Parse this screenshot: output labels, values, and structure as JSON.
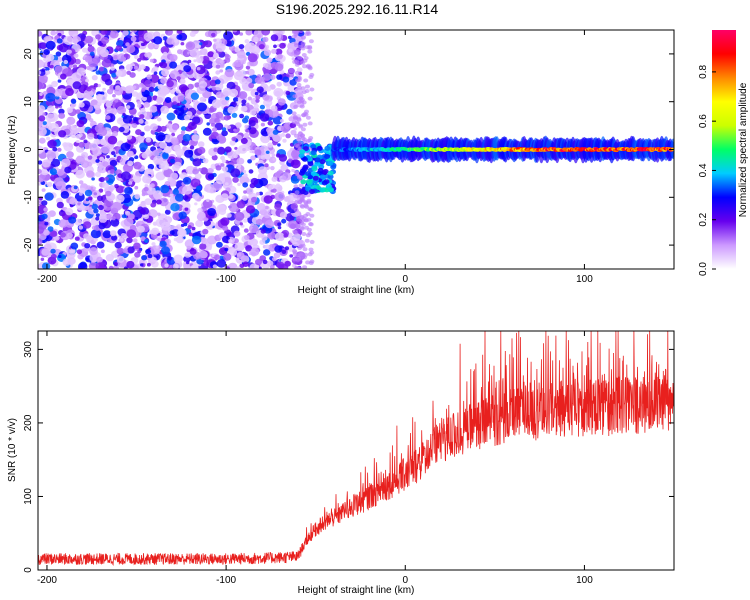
{
  "chart_data": [
    {
      "type": "heatmap",
      "title": "S196.2025.292.16.11.R14",
      "xlabel": "Height of straight line (km)",
      "ylabel": "Frequency (Hz)",
      "xlim": [
        -205,
        150
      ],
      "ylim": [
        -25,
        25
      ],
      "xticks": [
        -200,
        -100,
        0,
        100
      ],
      "yticks": [
        -20,
        -10,
        0,
        10,
        20
      ],
      "colorbar": {
        "label": "Normalized spectral amplitude",
        "range": [
          0.0,
          0.97
        ],
        "ticks": [
          0.0,
          0.2,
          0.4,
          0.6,
          0.8
        ],
        "colormap": [
          "#ffffff",
          "#cc99ff",
          "#6600ee",
          "#0000ff",
          "#00ccff",
          "#00ff66",
          "#ccff00",
          "#ffff00",
          "#ff8800",
          "#ff0000",
          "#ff0066"
        ]
      },
      "regions": [
        {
          "name": "noise",
          "x_range": [
            -205,
            -58
          ],
          "freq_range": [
            -25,
            25
          ],
          "amplitude_range": [
            0.0,
            0.3
          ]
        },
        {
          "name": "transition",
          "x_range": [
            -58,
            -40
          ],
          "freq_range": [
            -9,
            1
          ],
          "amplitude_range": [
            0.1,
            0.3
          ]
        },
        {
          "name": "tone",
          "x_range": [
            -40,
            150
          ],
          "freq_center": 0,
          "freq_halfwidth": 1.5,
          "peak_amplitude": 0.95
        }
      ]
    },
    {
      "type": "line",
      "title": "",
      "xlabel": "Height of straight line (km)",
      "ylabel": "SNR (10 * v/v)",
      "xlim": [
        -205,
        150
      ],
      "ylim": [
        0,
        325
      ],
      "xticks": [
        -200,
        -100,
        0,
        100
      ],
      "yticks": [
        0,
        100,
        200,
        300
      ],
      "series": [
        {
          "name": "SNR",
          "color": "#e8201e",
          "x": [
            -205,
            -180,
            -150,
            -120,
            -100,
            -80,
            -60,
            -55,
            -50,
            -40,
            -30,
            -20,
            -10,
            0,
            10,
            20,
            30,
            40,
            50,
            60,
            70,
            80,
            90,
            100,
            110,
            120,
            130,
            140,
            150
          ],
          "y": [
            15,
            15,
            15,
            15,
            15,
            16,
            18,
            40,
            55,
            70,
            85,
            100,
            115,
            130,
            150,
            175,
            185,
            195,
            205,
            210,
            215,
            215,
            220,
            220,
            220,
            225,
            225,
            225,
            225
          ]
        }
      ]
    }
  ]
}
